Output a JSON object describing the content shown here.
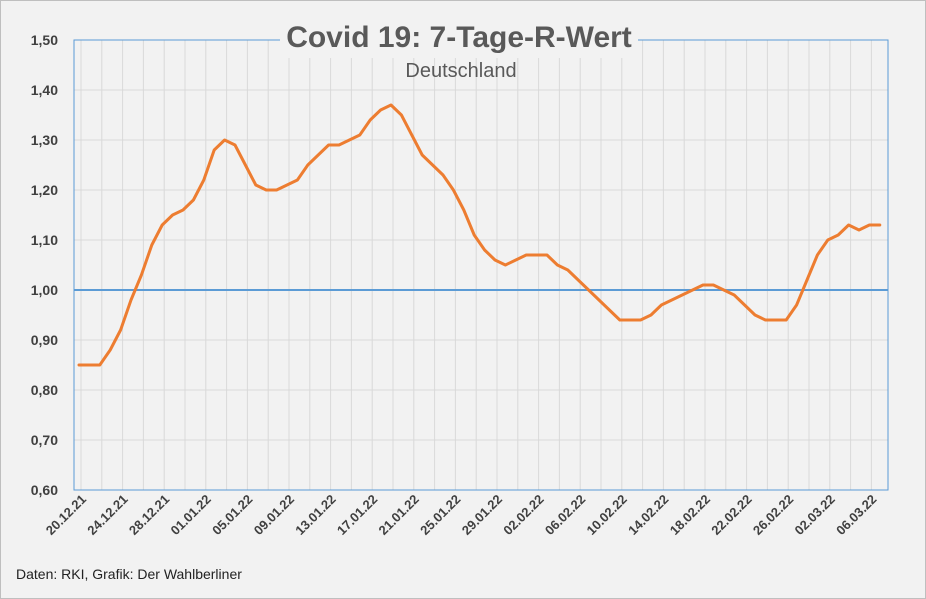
{
  "chart_data": {
    "type": "line",
    "title": "Covid 19: 7-Tage-R-Wert",
    "subtitle": "Deutschland",
    "xlabel": "",
    "ylabel": "",
    "ylim": [
      0.6,
      1.5
    ],
    "yticks": [
      "0,60",
      "0,70",
      "0,80",
      "0,90",
      "1,00",
      "1,10",
      "1,20",
      "1,30",
      "1,40",
      "1,50"
    ],
    "grid": true,
    "legend": "none",
    "x_tick_labels": [
      "20.12.21",
      "24.12.21",
      "28.12.21",
      "01.01.22",
      "05.01.22",
      "09.01.22",
      "13.01.22",
      "17.01.22",
      "21.01.22",
      "25.01.22",
      "29.01.22",
      "02.02.22",
      "06.02.22",
      "10.02.22",
      "14.02.22",
      "18.02.22",
      "22.02.22",
      "26.02.22",
      "02.03.22",
      "06.03.22"
    ],
    "reference_line": {
      "y": 1.0,
      "color": "#5b9bd5"
    },
    "series": [
      {
        "color": "#ed7d31",
        "values": [
          0.85,
          0.85,
          0.85,
          0.88,
          0.92,
          0.98,
          1.03,
          1.09,
          1.13,
          1.15,
          1.16,
          1.18,
          1.22,
          1.28,
          1.3,
          1.29,
          1.25,
          1.21,
          1.2,
          1.2,
          1.21,
          1.22,
          1.25,
          1.27,
          1.29,
          1.29,
          1.3,
          1.31,
          1.34,
          1.36,
          1.37,
          1.35,
          1.31,
          1.27,
          1.25,
          1.23,
          1.2,
          1.16,
          1.11,
          1.08,
          1.06,
          1.05,
          1.06,
          1.07,
          1.07,
          1.07,
          1.05,
          1.04,
          1.02,
          1.0,
          0.98,
          0.96,
          0.94,
          0.94,
          0.94,
          0.95,
          0.97,
          0.98,
          0.99,
          1.0,
          1.01,
          1.01,
          1.0,
          0.99,
          0.97,
          0.95,
          0.94,
          0.94,
          0.94,
          0.97,
          1.02,
          1.07,
          1.1,
          1.11,
          1.13,
          1.12,
          1.13,
          1.13
        ]
      }
    ]
  },
  "footer": "Daten: RKI, Grafik: Der Wahlberliner"
}
